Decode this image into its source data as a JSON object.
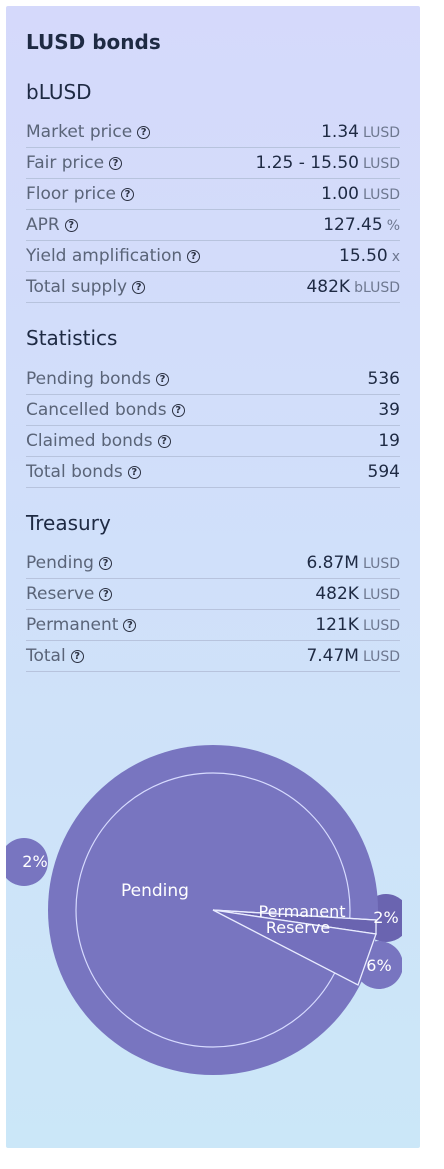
{
  "title": "LUSD bonds",
  "blusd": {
    "heading": "bLUSD",
    "rows": [
      {
        "label": "Market price",
        "value": "1.34",
        "unit": "LUSD"
      },
      {
        "label": "Fair price",
        "value": "1.25 - 15.50",
        "unit": "LUSD"
      },
      {
        "label": "Floor price",
        "value": "1.00",
        "unit": "LUSD"
      },
      {
        "label": "APR",
        "value": "127.45",
        "unit": "%"
      },
      {
        "label": "Yield amplification",
        "value": "15.50",
        "unit": "x"
      },
      {
        "label": "Total supply",
        "value": "482K",
        "unit": "bLUSD"
      }
    ]
  },
  "statistics": {
    "heading": "Statistics",
    "rows": [
      {
        "label": "Pending bonds",
        "value": "536"
      },
      {
        "label": "Cancelled bonds",
        "value": "39"
      },
      {
        "label": "Claimed bonds",
        "value": "19"
      },
      {
        "label": "Total bonds",
        "value": "594"
      }
    ]
  },
  "treasury": {
    "heading": "Treasury",
    "rows": [
      {
        "label": "Pending",
        "value": "6.87M",
        "unit": "LUSD"
      },
      {
        "label": "Reserve",
        "value": "482K",
        "unit": "LUSD"
      },
      {
        "label": "Permanent",
        "value": "121K",
        "unit": "LUSD"
      },
      {
        "label": "Total",
        "value": "7.47M",
        "unit": "LUSD"
      }
    ]
  },
  "colors": {
    "slice": "#7875c0",
    "slice_dark": "#6a64b0",
    "text_dark": "#1e2a43"
  },
  "chart_data": {
    "type": "pie",
    "slices": [
      {
        "label": "Pending",
        "value": 6.87
      },
      {
        "label": "Permanent",
        "value": 0.121
      },
      {
        "label": "Reserve",
        "value": 0.482
      }
    ],
    "bubbles": [
      "2%",
      "2%",
      "6%"
    ]
  }
}
